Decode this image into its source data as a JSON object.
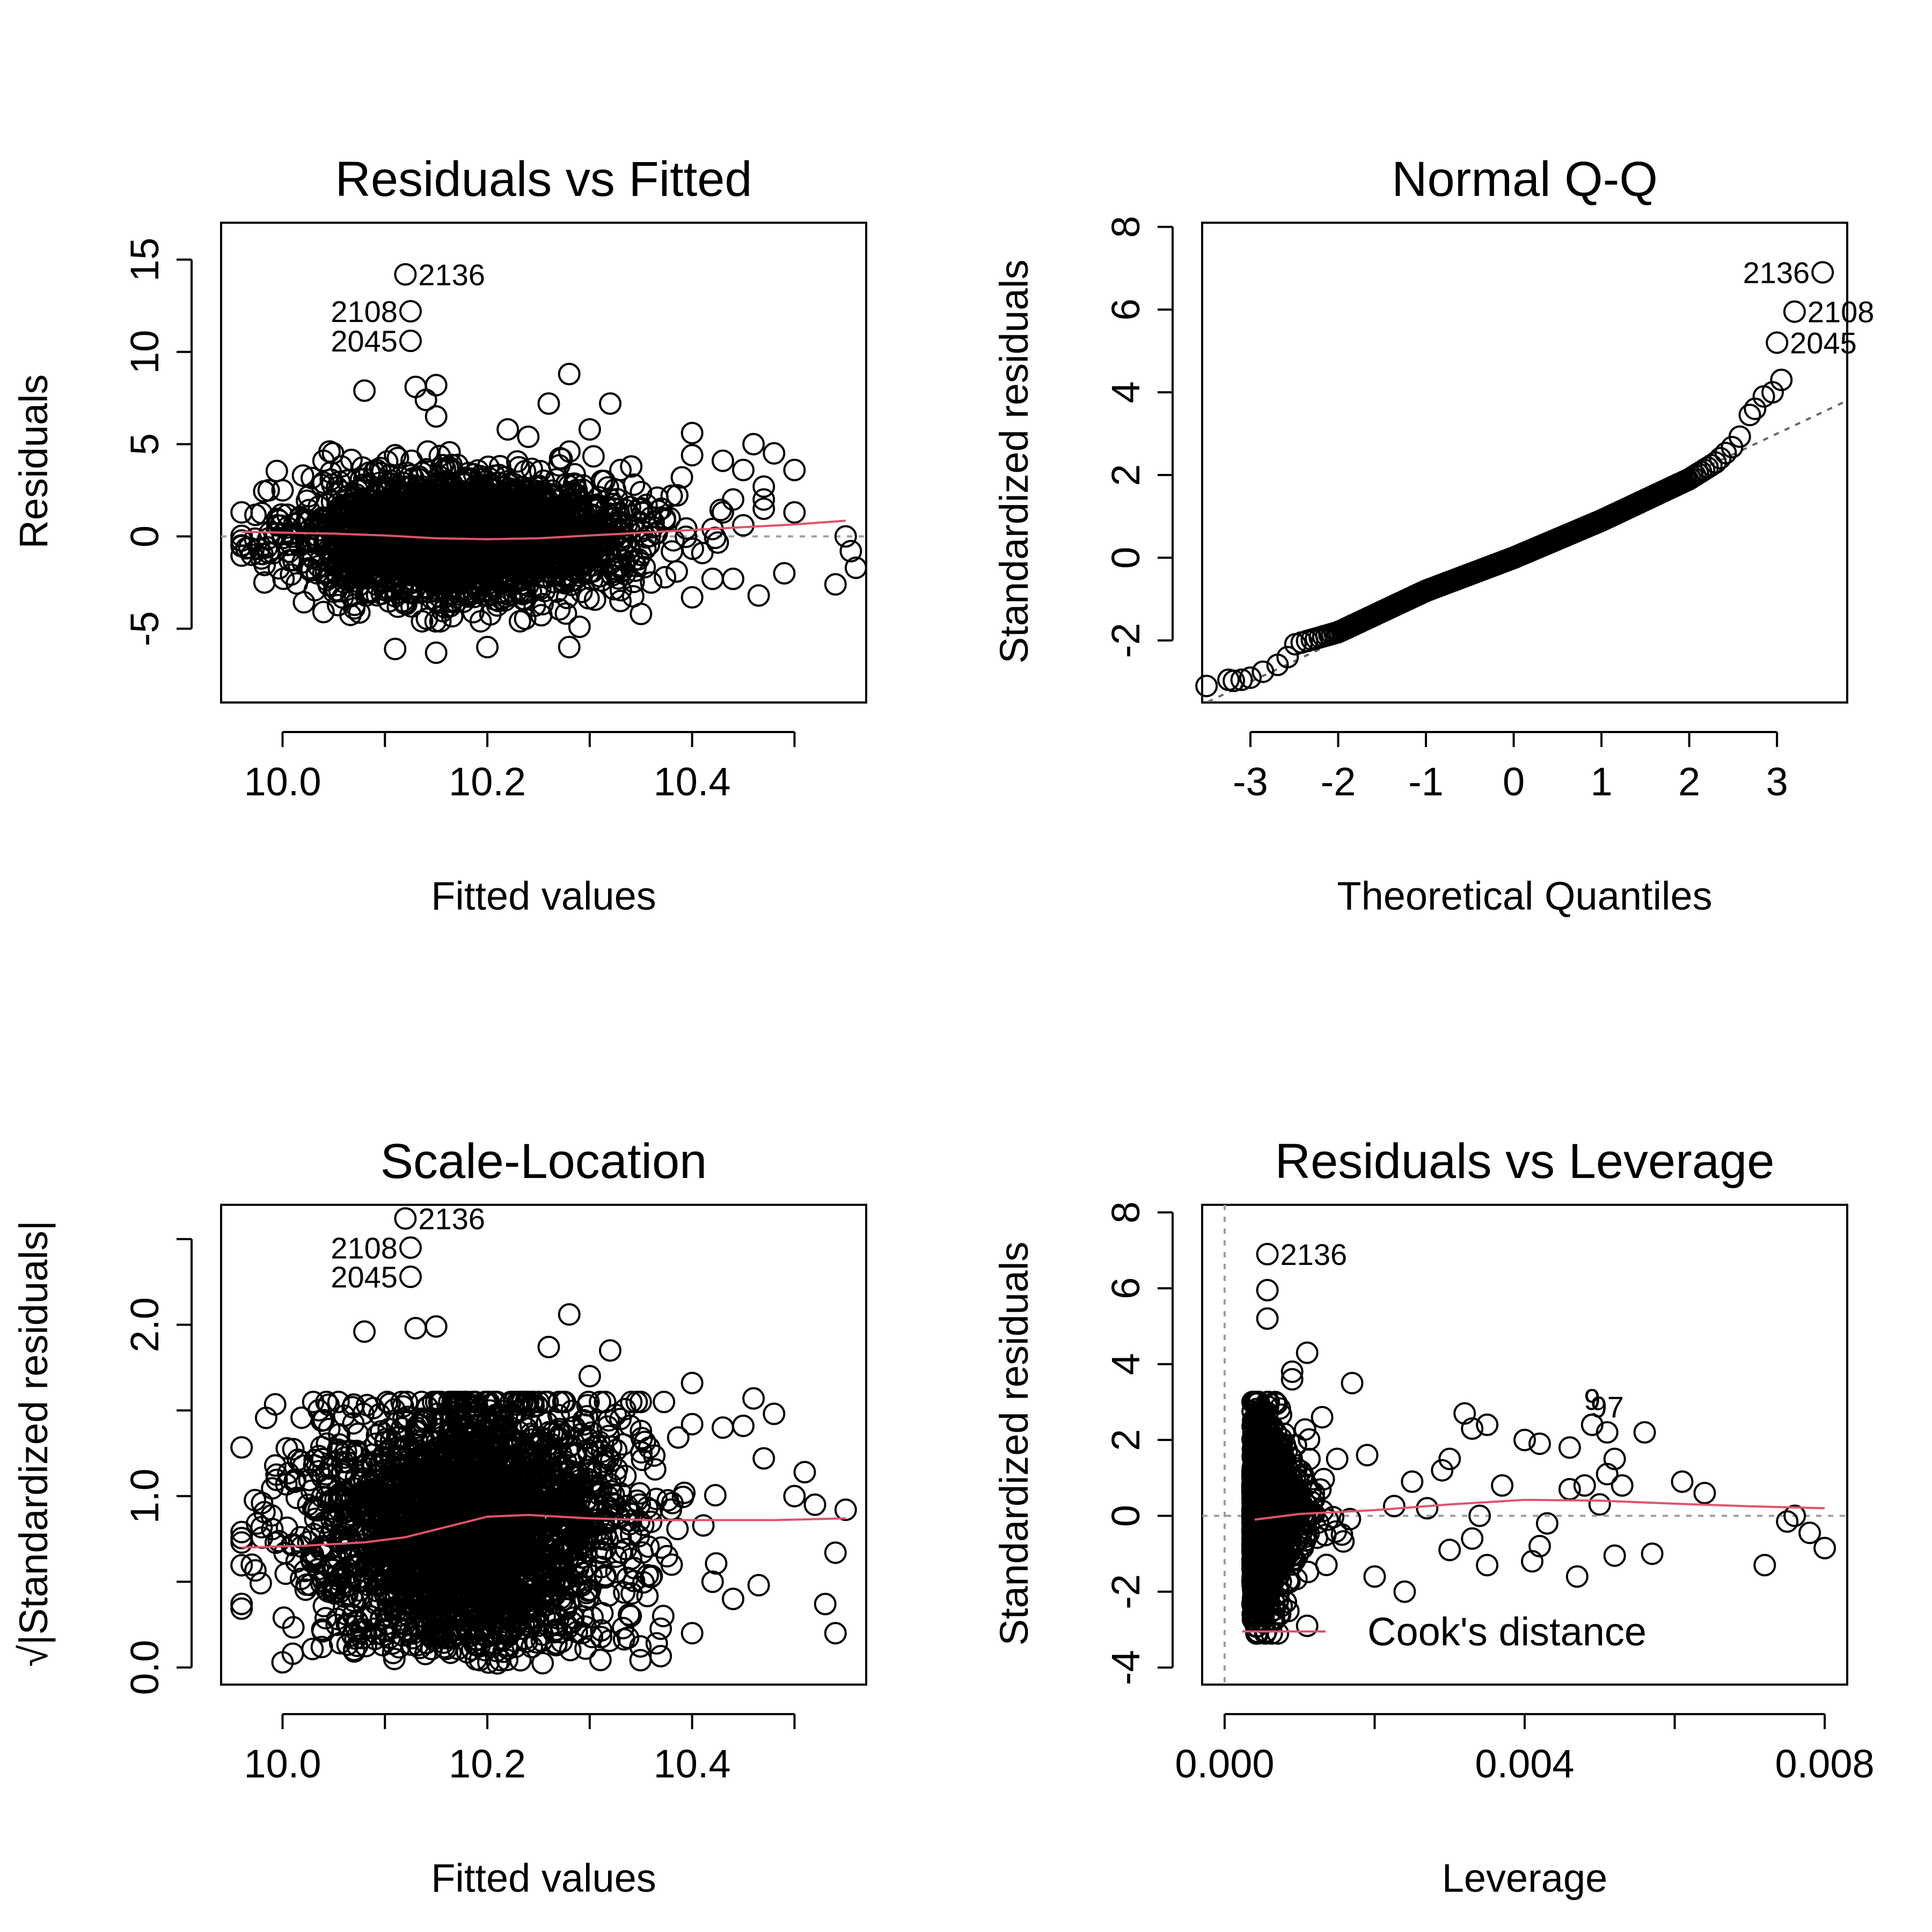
{
  "chart_data": [
    {
      "type": "scatter",
      "title": "Residuals vs Fitted",
      "xlabel": "Fitted values",
      "ylabel": "Residuals",
      "xlim": [
        9.94,
        10.57
      ],
      "ylim": [
        -9,
        17
      ],
      "xticks": [
        10.0,
        10.1,
        10.2,
        10.3,
        10.4,
        10.5
      ],
      "xtick_labels": [
        "10.0",
        "",
        "10.2",
        "",
        "10.4",
        ""
      ],
      "yticks": [
        -5,
        0,
        5,
        10,
        15
      ],
      "ytick_labels": [
        "-5",
        "0",
        "5",
        "10",
        "15"
      ],
      "reference_line": {
        "y": 0
      },
      "smooth": {
        "x": [
          9.96,
          10.05,
          10.1,
          10.15,
          10.2,
          10.25,
          10.3,
          10.35,
          10.4,
          10.45,
          10.5,
          10.55
        ],
        "y": [
          0.25,
          0.15,
          0.05,
          -0.1,
          -0.15,
          -0.1,
          0.05,
          0.2,
          0.35,
          0.5,
          0.65,
          0.85
        ]
      },
      "labeled_points": [
        {
          "label": "2136",
          "x": 10.12,
          "y": 14.2,
          "side": "right"
        },
        {
          "label": "2108",
          "x": 10.125,
          "y": 12.2,
          "side": "left"
        },
        {
          "label": "2045",
          "x": 10.125,
          "y": 10.6,
          "side": "left"
        }
      ],
      "outliers": [
        [
          10.08,
          7.9
        ],
        [
          10.13,
          8.1
        ],
        [
          10.15,
          8.2
        ],
        [
          10.28,
          8.8
        ],
        [
          10.32,
          7.2
        ],
        [
          10.26,
          7.2
        ],
        [
          10.14,
          7.4
        ],
        [
          10.15,
          6.5
        ],
        [
          10.3,
          5.8
        ],
        [
          10.4,
          5.6
        ],
        [
          10.46,
          5.0
        ],
        [
          10.48,
          4.5
        ],
        [
          10.4,
          4.4
        ],
        [
          10.43,
          4.1
        ],
        [
          10.45,
          3.6
        ],
        [
          10.47,
          2.7
        ],
        [
          10.47,
          2.0
        ],
        [
          10.5,
          1.3
        ],
        [
          10.47,
          1.5
        ],
        [
          10.55,
          0.0
        ],
        [
          10.555,
          -0.8
        ],
        [
          10.56,
          -1.7
        ],
        [
          10.54,
          -2.6
        ],
        [
          10.49,
          -2.0
        ],
        [
          10.465,
          -3.2
        ],
        [
          10.44,
          -2.3
        ],
        [
          10.42,
          -2.3
        ],
        [
          10.4,
          -3.3
        ],
        [
          10.41,
          -0.9
        ],
        [
          10.385,
          -1.9
        ],
        [
          10.35,
          -4.2
        ],
        [
          10.33,
          -3.5
        ],
        [
          10.28,
          -6.0
        ],
        [
          10.29,
          -4.9
        ],
        [
          10.2,
          -6.0
        ],
        [
          10.15,
          -6.3
        ],
        [
          10.11,
          -6.1
        ],
        [
          10.04,
          -4.1
        ],
        [
          10.07,
          -3.9
        ],
        [
          10.05,
          -3.0
        ],
        [
          10.35,
          2.4
        ],
        [
          10.38,
          2.2
        ],
        [
          10.36,
          -2.5
        ],
        [
          10.02,
          3.3
        ],
        [
          10.04,
          4.1
        ],
        [
          10.11,
          4.4
        ],
        [
          10.22,
          5.8
        ],
        [
          10.24,
          5.4
        ],
        [
          10.33,
          3.6
        ],
        [
          10.37,
          1.5
        ],
        [
          10.43,
          1.3
        ],
        [
          10.45,
          0.6
        ],
        [
          9.96,
          1.3
        ],
        [
          9.97,
          -1.0
        ],
        [
          10.0,
          2.5
        ],
        [
          10.35,
          -1.0
        ],
        [
          10.42,
          0.4
        ],
        [
          10.39,
          3.2
        ],
        [
          10.44,
          2.0
        ],
        [
          10.5,
          3.6
        ]
      ],
      "bulk": {
        "n": 2600,
        "x_mean": 10.18,
        "x_sd": 0.075,
        "y_sd": 1.6
      }
    },
    {
      "type": "scatter",
      "title": "Normal Q-Q",
      "xlabel": "Theoretical Quantiles",
      "ylabel": "Standardized residuals",
      "xlim": [
        -3.55,
        3.8
      ],
      "ylim": [
        -3.5,
        8.1
      ],
      "xticks": [
        -3,
        -2,
        -1,
        0,
        1,
        2,
        3
      ],
      "xtick_labels": [
        "-3",
        "-2",
        "-1",
        "0",
        "1",
        "2",
        "3"
      ],
      "yticks": [
        -2,
        0,
        2,
        4,
        6,
        8
      ],
      "ytick_labels": [
        "-2",
        "0",
        "2",
        "4",
        "6",
        "8"
      ],
      "reference_line": {
        "slope": 1.0,
        "intercept": 0.0
      },
      "curve": {
        "x": [
          -3.5,
          -3.0,
          -2.6,
          -2.5,
          -2.0,
          -1.0,
          0.0,
          1.0,
          2.0,
          2.3,
          2.5,
          2.6,
          2.7
        ],
        "y": [
          -3.1,
          -2.9,
          -2.5,
          -2.1,
          -1.8,
          -0.8,
          0.0,
          0.9,
          1.9,
          2.3,
          2.7,
          3.0,
          3.5
        ]
      },
      "tail_points": [
        [
          -3.5,
          -3.1
        ],
        [
          -3.25,
          -2.95
        ],
        [
          -3.1,
          -2.95
        ],
        [
          -3.0,
          -2.9
        ],
        [
          2.75,
          3.6
        ],
        [
          2.85,
          3.9
        ],
        [
          2.95,
          4.0
        ],
        [
          3.05,
          4.3
        ]
      ],
      "labeled_points": [
        {
          "label": "2136",
          "x": 3.52,
          "y": 6.9,
          "side": "left"
        },
        {
          "label": "2108",
          "x": 3.2,
          "y": 5.95,
          "side": "right"
        },
        {
          "label": "2045",
          "x": 3.0,
          "y": 5.2,
          "side": "right"
        }
      ]
    },
    {
      "type": "scatter",
      "title": "Scale-Location",
      "xlabel": "Fitted values",
      "ylabel": "√|Standardized residuals|",
      "xlim": [
        9.94,
        10.57
      ],
      "ylim": [
        -0.1,
        2.7
      ],
      "xticks": [
        10.0,
        10.1,
        10.2,
        10.3,
        10.4,
        10.5
      ],
      "xtick_labels": [
        "10.0",
        "",
        "10.2",
        "",
        "10.4",
        ""
      ],
      "yticks": [
        0.0,
        0.5,
        1.0,
        1.5,
        2.0,
        2.5
      ],
      "ytick_labels": [
        "0.0",
        "",
        "1.0",
        "",
        "2.0",
        ""
      ],
      "smooth": {
        "x": [
          9.96,
          10.02,
          10.08,
          10.12,
          10.16,
          10.2,
          10.24,
          10.3,
          10.36,
          10.42,
          10.48,
          10.55
        ],
        "y": [
          0.7,
          0.71,
          0.73,
          0.76,
          0.82,
          0.88,
          0.89,
          0.87,
          0.86,
          0.86,
          0.86,
          0.87
        ]
      },
      "labeled_points": [
        {
          "label": "2136",
          "x": 10.12,
          "y": 2.62,
          "side": "right"
        },
        {
          "label": "2108",
          "x": 10.125,
          "y": 2.45,
          "side": "left"
        },
        {
          "label": "2045",
          "x": 10.125,
          "y": 2.28,
          "side": "left"
        }
      ],
      "outliers": [
        [
          10.08,
          1.96
        ],
        [
          10.13,
          1.98
        ],
        [
          10.15,
          1.99
        ],
        [
          10.28,
          2.06
        ],
        [
          10.26,
          1.87
        ],
        [
          10.32,
          1.85
        ],
        [
          10.3,
          1.7
        ],
        [
          10.4,
          1.66
        ],
        [
          10.46,
          1.57
        ],
        [
          10.48,
          1.48
        ],
        [
          10.4,
          1.42
        ],
        [
          10.43,
          1.4
        ],
        [
          10.45,
          1.41
        ],
        [
          10.47,
          1.22
        ],
        [
          10.5,
          1.0
        ],
        [
          10.52,
          0.95
        ],
        [
          10.55,
          0.92
        ],
        [
          10.54,
          0.67
        ],
        [
          10.53,
          0.37
        ],
        [
          10.54,
          0.2
        ],
        [
          10.51,
          1.14
        ],
        [
          10.42,
          0.5
        ],
        [
          10.4,
          0.2
        ],
        [
          10.44,
          0.4
        ],
        [
          10.465,
          0.48
        ],
        [
          9.96,
          0.79
        ],
        [
          9.97,
          0.6
        ],
        [
          9.98,
          0.96
        ],
        [
          10.0,
          0.03
        ],
        [
          10.01,
          0.08
        ],
        [
          10.38,
          0.6
        ],
        [
          10.33,
          1.45
        ],
        [
          10.35,
          1.38
        ],
        [
          10.36,
          0.85
        ],
        [
          10.37,
          0.7
        ],
        [
          10.34,
          0.3
        ]
      ],
      "bulk": {
        "n": 2600,
        "x_mean": 10.18,
        "x_sd": 0.075
      }
    },
    {
      "type": "scatter",
      "title": "Residuals vs Leverage",
      "xlabel": "Leverage",
      "ylabel": "Standardized residuals",
      "xlim": [
        -0.0003,
        0.0083
      ],
      "ylim": [
        -4.45,
        8.2
      ],
      "xticks": [
        0.0,
        0.002,
        0.004,
        0.006,
        0.008
      ],
      "xtick_labels": [
        "0.000",
        "",
        "0.004",
        "",
        "0.008"
      ],
      "yticks": [
        -4,
        -2,
        0,
        2,
        4,
        6,
        8
      ],
      "ytick_labels": [
        "-4",
        "-2",
        "0",
        "2",
        "4",
        "6",
        "8"
      ],
      "reference_lines": {
        "x": 0,
        "y": 0
      },
      "smooth": {
        "x": [
          0.0004,
          0.001,
          0.002,
          0.003,
          0.004,
          0.005,
          0.006,
          0.007,
          0.008
        ],
        "y": [
          -0.1,
          0.05,
          0.15,
          0.3,
          0.42,
          0.4,
          0.32,
          0.25,
          0.2
        ]
      },
      "legend": {
        "label": "Cook's distance",
        "position": "bottom"
      },
      "labeled_points": [
        {
          "label": "2136",
          "x": 0.00057,
          "y": 6.9,
          "side": "right"
        },
        {
          "label": "9",
          "x": 0.0049,
          "y": 2.4,
          "side": "above"
        },
        {
          "label": "97",
          "x": 0.0051,
          "y": 2.2,
          "side": "above"
        }
      ],
      "outliers": [
        [
          0.00057,
          5.95
        ],
        [
          0.00057,
          5.2
        ],
        [
          0.0011,
          4.3
        ],
        [
          0.0009,
          3.8
        ],
        [
          0.0017,
          3.5
        ],
        [
          0.0032,
          2.7
        ],
        [
          0.0033,
          2.3
        ],
        [
          0.0035,
          2.4
        ],
        [
          0.0037,
          0.8
        ],
        [
          0.004,
          2.0
        ],
        [
          0.0042,
          1.9
        ],
        [
          0.0046,
          1.8
        ],
        [
          0.0049,
          2.4
        ],
        [
          0.0051,
          1.1
        ],
        [
          0.0052,
          1.5
        ],
        [
          0.0053,
          0.8
        ],
        [
          0.0056,
          2.2
        ],
        [
          0.0046,
          0.7
        ],
        [
          0.0048,
          0.8
        ],
        [
          0.0061,
          0.9
        ],
        [
          0.0064,
          0.6
        ],
        [
          0.005,
          0.3
        ],
        [
          0.0076,
          0.0
        ],
        [
          0.0075,
          -0.15
        ],
        [
          0.0078,
          -0.45
        ],
        [
          0.008,
          -0.85
        ],
        [
          0.0072,
          -1.3
        ],
        [
          0.0057,
          -1.0
        ],
        [
          0.0052,
          -1.05
        ],
        [
          0.0047,
          -1.6
        ],
        [
          0.0042,
          -0.8
        ],
        [
          0.0041,
          -1.2
        ],
        [
          0.0043,
          -0.2
        ],
        [
          0.0035,
          -1.3
        ],
        [
          0.0033,
          -0.6
        ],
        [
          0.003,
          -0.9
        ],
        [
          0.0024,
          -2.0
        ],
        [
          0.002,
          -1.6
        ],
        [
          0.0011,
          -2.9
        ],
        [
          0.0019,
          1.6
        ],
        [
          0.0025,
          0.9
        ],
        [
          0.003,
          1.5
        ],
        [
          0.0027,
          0.2
        ],
        [
          0.0034,
          0.0
        ],
        [
          0.0009,
          3.6
        ],
        [
          0.0013,
          2.6
        ],
        [
          0.0015,
          1.5
        ],
        [
          0.0029,
          1.2
        ]
      ],
      "bulk": {
        "n": 2200,
        "x_min": 0.00037,
        "x_rate": 0.00032,
        "y_sd": 1.0
      }
    }
  ]
}
